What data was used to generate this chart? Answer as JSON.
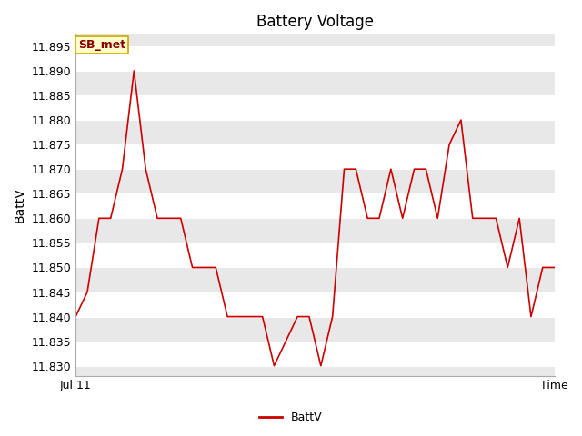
{
  "title": "Battery Voltage",
  "ylabel": "BattV",
  "legend_label": "BattV",
  "legend_location_label": "SB_met",
  "line_color": "#cc0000",
  "figure_bg_color": "#ffffff",
  "plot_bg_color": "#e8e8e8",
  "grid_color": "#ffffff",
  "ylim": [
    11.828,
    11.8975
  ],
  "yticks": [
    11.83,
    11.835,
    11.84,
    11.845,
    11.85,
    11.855,
    11.86,
    11.865,
    11.87,
    11.875,
    11.88,
    11.885,
    11.89,
    11.895
  ],
  "y_values": [
    11.84,
    11.845,
    11.86,
    11.86,
    11.87,
    11.89,
    11.87,
    11.86,
    11.86,
    11.86,
    11.85,
    11.85,
    11.85,
    11.84,
    11.84,
    11.84,
    11.84,
    11.83,
    11.835,
    11.84,
    11.84,
    11.83,
    11.84,
    11.87,
    11.87,
    11.86,
    11.86,
    11.87,
    11.86,
    11.87,
    11.87,
    11.86,
    11.875,
    11.88,
    11.86,
    11.86,
    11.86,
    11.85,
    11.86,
    11.84,
    11.85,
    11.85
  ],
  "x_tick_label_left": "Jul 11",
  "x_tick_label_right": "Time",
  "line_width": 1.2,
  "title_fontsize": 12,
  "axis_label_fontsize": 10,
  "tick_fontsize": 9,
  "legend_box_facecolor": "#ffffcc",
  "legend_box_edgecolor": "#ccaa00",
  "legend_text_color": "#880000",
  "annotation_fontsize": 9
}
